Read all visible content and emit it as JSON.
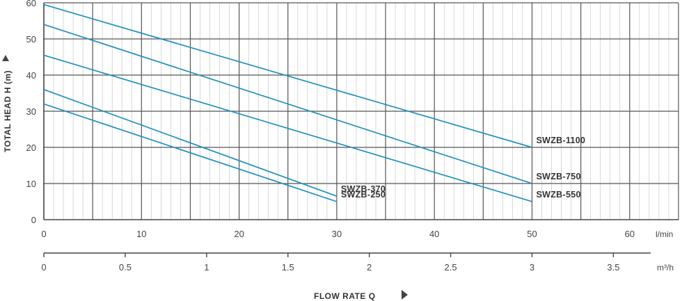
{
  "chart_data": {
    "type": "line",
    "ylabel": "TOTAL HEAD H (m)",
    "xlabel": "FLOW RATE Q",
    "x_unit": "l/min",
    "x2_unit": "m³/h",
    "xlim": [
      0,
      65
    ],
    "ylim": [
      0,
      60
    ],
    "x_ticks": [
      "0",
      "10",
      "20",
      "30",
      "40",
      "50",
      "60"
    ],
    "x2_ticks": [
      "0",
      "0.5",
      "1",
      "1.5",
      "2",
      "2.5",
      "3",
      "3.5"
    ],
    "y_ticks": [
      "0",
      "10",
      "20",
      "30",
      "40",
      "50",
      "60"
    ],
    "grid": true,
    "line_color": "#1f8fc0",
    "grid_color": "#555555",
    "series": [
      {
        "name": "SWZB-1100",
        "x": [
          0,
          50
        ],
        "y": [
          59.5,
          20
        ]
      },
      {
        "name": "SWZB-750",
        "x": [
          0,
          50
        ],
        "y": [
          54,
          10
        ]
      },
      {
        "name": "SWZB-550",
        "x": [
          0,
          50
        ],
        "y": [
          45.5,
          5
        ]
      },
      {
        "name": "SWZB-370",
        "x": [
          0,
          30
        ],
        "y": [
          36,
          6.5
        ]
      },
      {
        "name": "SWZB-250",
        "x": [
          0,
          30
        ],
        "y": [
          32,
          5
        ]
      }
    ]
  }
}
